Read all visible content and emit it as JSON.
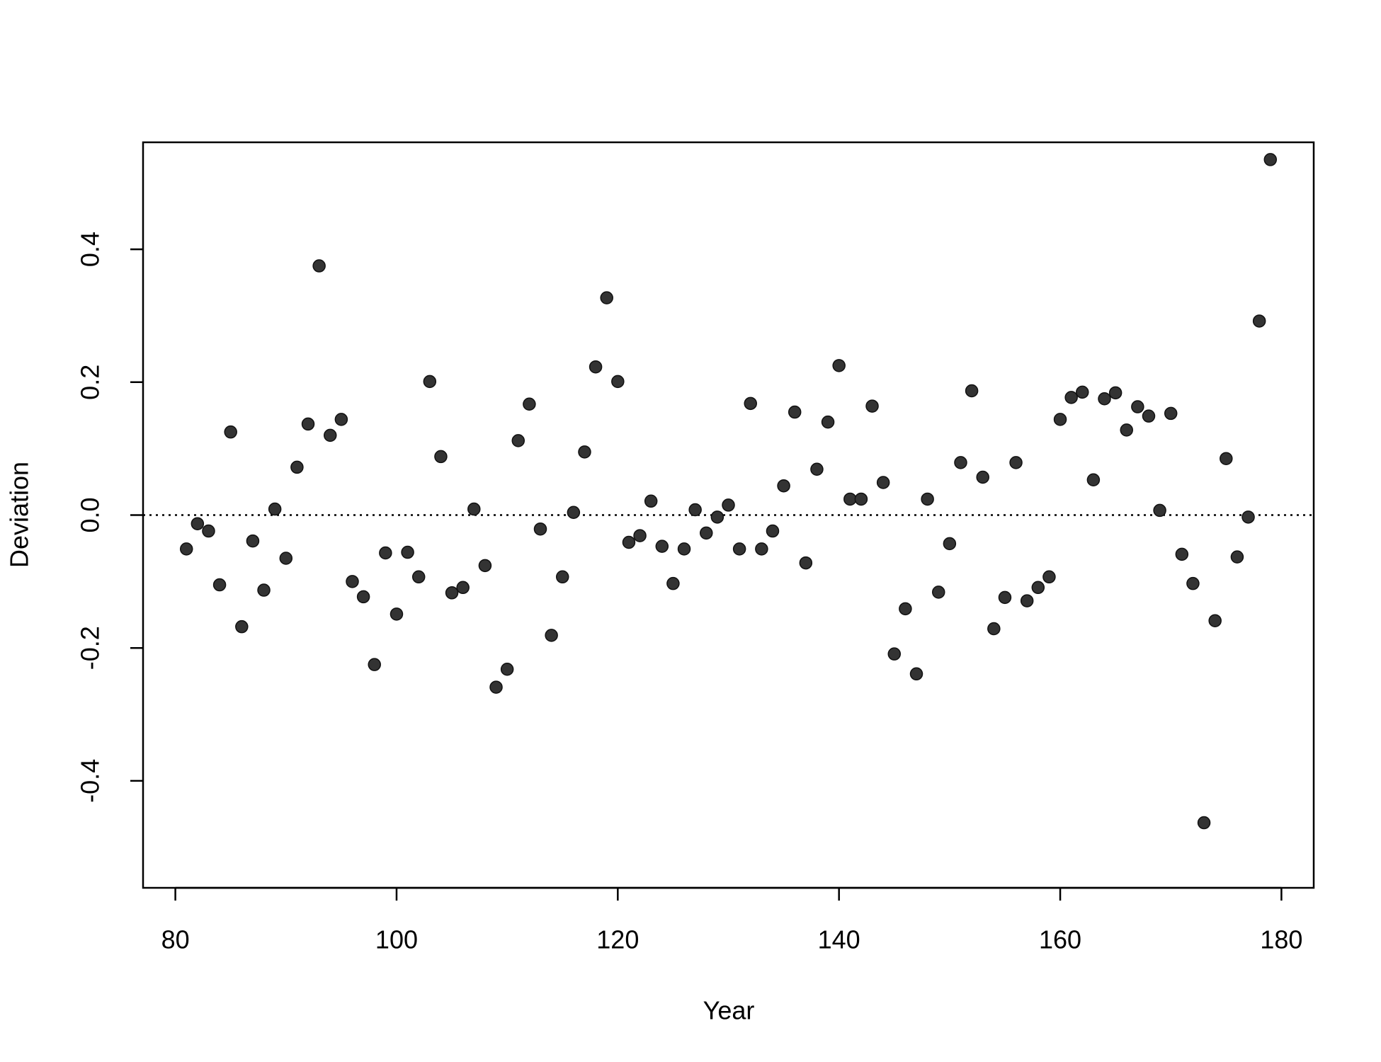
{
  "chart_data": {
    "type": "scatter",
    "x_label": "Year",
    "y_label": "Deviation",
    "x": [
      81,
      82,
      83,
      84,
      85,
      86,
      87,
      88,
      89,
      90,
      91,
      92,
      93,
      94,
      95,
      96,
      97,
      98,
      99,
      100,
      101,
      102,
      103,
      104,
      105,
      106,
      107,
      108,
      109,
      110,
      111,
      112,
      113,
      114,
      115,
      116,
      117,
      118,
      119,
      120,
      121,
      122,
      123,
      124,
      125,
      126,
      127,
      128,
      129,
      130,
      131,
      132,
      133,
      134,
      135,
      136,
      137,
      138,
      139,
      140,
      141,
      142,
      143,
      144,
      145,
      146,
      147,
      148,
      149,
      150,
      151,
      152,
      153,
      154,
      155,
      156,
      157,
      158,
      159,
      160,
      161,
      162,
      163,
      164,
      165,
      166,
      167,
      168,
      169,
      170,
      171,
      172,
      173,
      174,
      175,
      176,
      177,
      178,
      179
    ],
    "values": [
      -0.051,
      -0.013,
      -0.024,
      -0.105,
      0.125,
      -0.168,
      -0.039,
      -0.113,
      0.009,
      -0.065,
      0.072,
      0.137,
      0.375,
      0.12,
      0.144,
      -0.1,
      -0.123,
      -0.225,
      -0.057,
      -0.149,
      -0.056,
      -0.093,
      0.201,
      0.088,
      -0.117,
      -0.109,
      0.009,
      -0.076,
      -0.259,
      -0.232,
      0.112,
      0.167,
      -0.021,
      -0.181,
      -0.093,
      0.004,
      0.095,
      0.223,
      0.327,
      0.201,
      -0.041,
      -0.031,
      0.021,
      -0.047,
      -0.103,
      -0.051,
      0.008,
      -0.027,
      -0.003,
      0.015,
      -0.051,
      0.168,
      -0.051,
      -0.024,
      0.044,
      0.155,
      -0.072,
      0.069,
      0.14,
      0.225,
      0.024,
      0.024,
      0.164,
      0.049,
      -0.209,
      -0.141,
      -0.239,
      0.024,
      -0.116,
      -0.043,
      0.079,
      0.187,
      0.057,
      -0.171,
      -0.124,
      0.079,
      -0.129,
      -0.109,
      -0.093,
      0.144,
      0.177,
      0.185,
      0.053,
      0.175,
      0.184,
      0.128,
      0.163,
      0.149,
      0.007,
      0.153,
      -0.059,
      -0.103,
      -0.463,
      -0.159,
      0.085,
      -0.063,
      -0.003,
      0.292,
      0.535
    ],
    "color": "#333333",
    "hline": 0,
    "xlim": [
      77.08,
      182.92
    ],
    "ylim": [
      -0.561,
      0.561
    ],
    "xticks": [
      80,
      100,
      120,
      140,
      160,
      180
    ],
    "yticks": [
      -0.4,
      -0.2,
      {
        "value": 0,
        "label": "0.0"
      },
      0.2,
      0.4
    ]
  }
}
